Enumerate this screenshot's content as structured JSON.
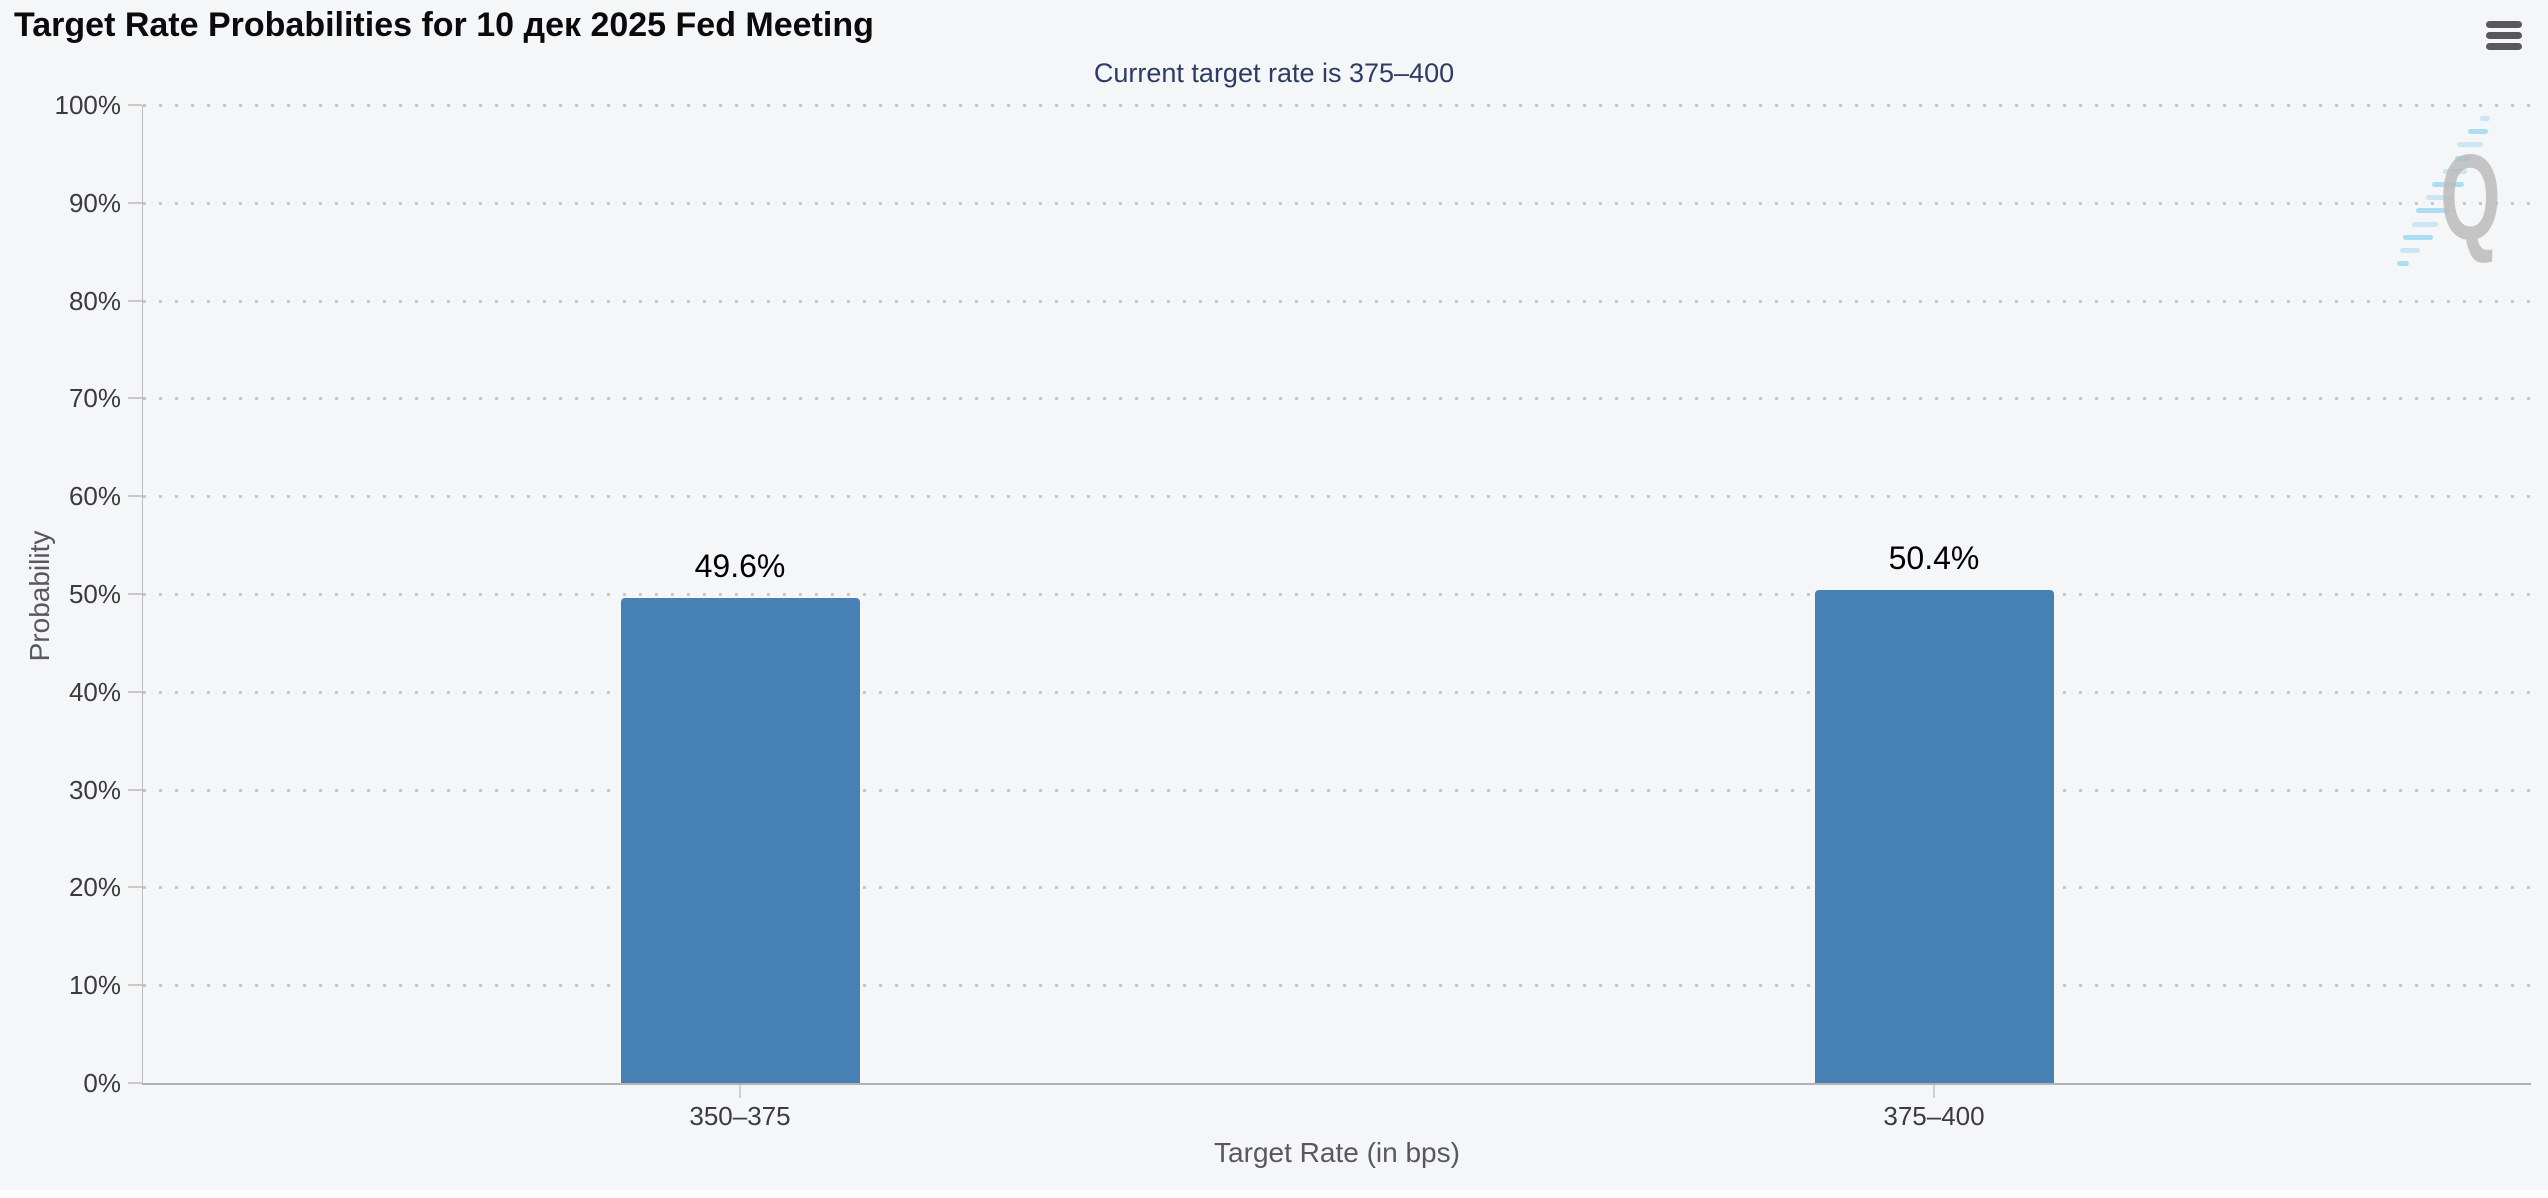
{
  "chart_data": {
    "type": "bar",
    "title": "Target Rate Probabilities for 10 дек 2025 Fed Meeting",
    "subtitle": "Current target rate is 375–400",
    "xlabel": "Target Rate (in bps)",
    "ylabel": "Probability",
    "categories": [
      "350–375",
      "375–400"
    ],
    "values": [
      49.6,
      50.4
    ],
    "value_labels": [
      "49.6%",
      "50.4%"
    ],
    "ylim": [
      0,
      100
    ],
    "yticks": [
      0,
      10,
      20,
      30,
      40,
      50,
      60,
      70,
      80,
      90,
      100
    ],
    "ytick_labels": [
      "0%",
      "10%",
      "20%",
      "30%",
      "40%",
      "50%",
      "60%",
      "70%",
      "80%",
      "90%",
      "100%"
    ],
    "grid": "dotted-horizontal",
    "legend": "none",
    "bar_color": "#4680b4",
    "subtitle_color": "#2d3c64",
    "axis_line_color": "#b3b3b3",
    "gridline_color": "#c7c7c8"
  },
  "header": {
    "menu_icon": "hamburger-icon",
    "menu_color": "#59595b"
  },
  "watermark": {
    "letter": "Q",
    "letter_color": "#bcbcbc",
    "stripe_color": "#a5d9f4"
  }
}
